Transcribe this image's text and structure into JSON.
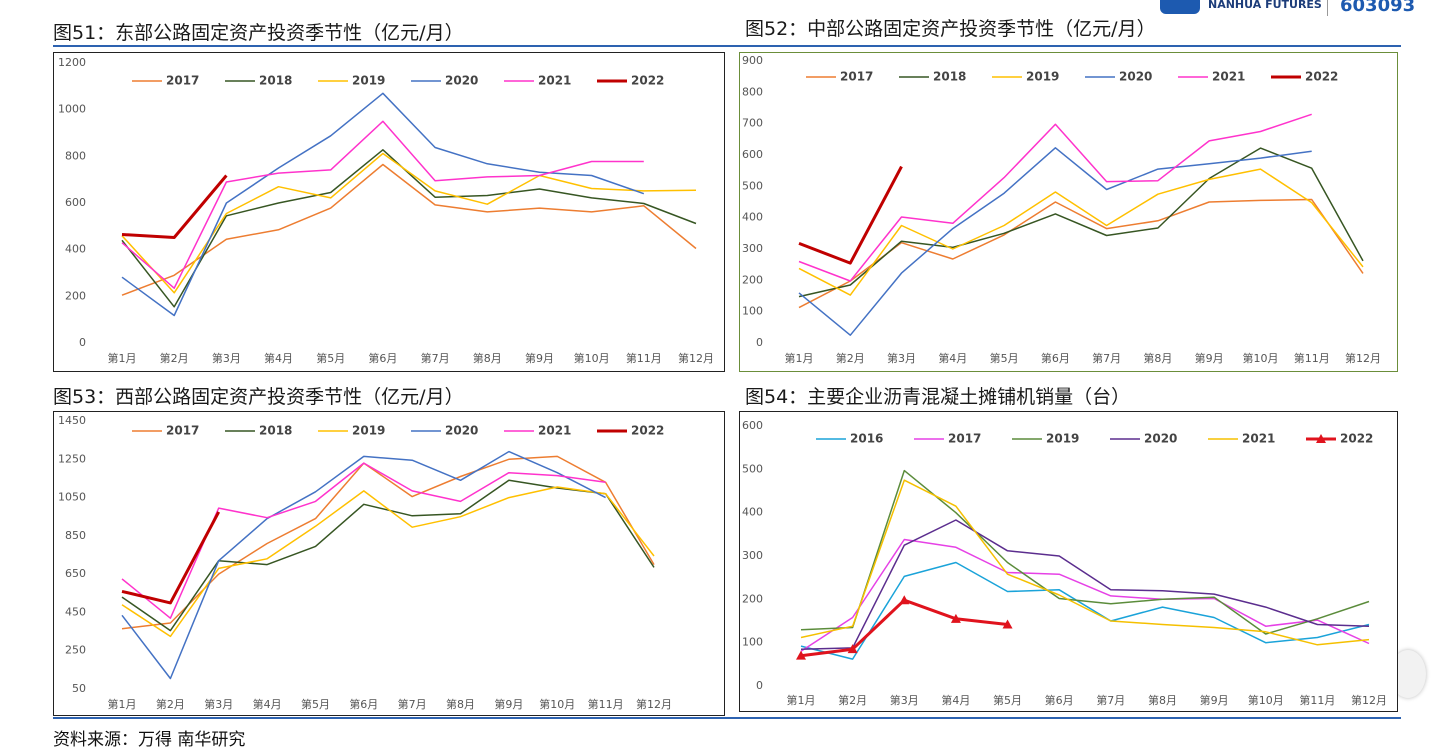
{
  "page": {
    "logo_text": "NANHUA FUTURES",
    "code": "603093",
    "source": "资料来源：万得 南华研究"
  },
  "chart_data": [
    {
      "type": "line",
      "title": "图51：东部公路固定资产投资季节性（亿元/月）",
      "categories": [
        "第1月",
        "第2月",
        "第3月",
        "第4月",
        "第5月",
        "第6月",
        "第7月",
        "第8月",
        "第9月",
        "第10月",
        "第11月",
        "第12月"
      ],
      "ylim": [
        0,
        1200
      ],
      "yticks": [
        0,
        200,
        400,
        600,
        800,
        1000,
        1200
      ],
      "grid": false,
      "legend": "top",
      "series": [
        {
          "name": "2017",
          "color": "#ed7d31",
          "linewidth": 1.5,
          "values": [
            205,
            290,
            445,
            485,
            578,
            765,
            592,
            562,
            578,
            562,
            588,
            405
          ]
        },
        {
          "name": "2018",
          "color": "#375623",
          "linewidth": 1.5,
          "values": [
            440,
            155,
            545,
            600,
            645,
            828,
            625,
            632,
            660,
            622,
            598,
            512
          ]
        },
        {
          "name": "2019",
          "color": "#ffc000",
          "linewidth": 1.5,
          "values": [
            460,
            215,
            555,
            670,
            622,
            812,
            652,
            595,
            718,
            662,
            652,
            655
          ]
        },
        {
          "name": "2020",
          "color": "#4472c4",
          "linewidth": 1.5,
          "values": [
            282,
            118,
            600,
            750,
            888,
            1070,
            838,
            768,
            732,
            718,
            640,
            null
          ]
        },
        {
          "name": "2021",
          "color": "#ff33cc",
          "linewidth": 1.5,
          "values": [
            430,
            235,
            690,
            728,
            742,
            950,
            695,
            712,
            718,
            778,
            778,
            null
          ]
        },
        {
          "name": "2022",
          "color": "#c00000",
          "linewidth": 3,
          "values": [
            465,
            452,
            718,
            null,
            null,
            null,
            null,
            null,
            null,
            null,
            null,
            null
          ]
        }
      ]
    },
    {
      "type": "line",
      "title": "图52：中部公路固定资产投资季节性（亿元/月）",
      "categories": [
        "第1月",
        "第2月",
        "第3月",
        "第4月",
        "第5月",
        "第6月",
        "第7月",
        "第8月",
        "第9月",
        "第10月",
        "第11月",
        "第12月"
      ],
      "ylim": [
        0,
        900
      ],
      "yticks": [
        0,
        100,
        200,
        300,
        400,
        500,
        600,
        700,
        800,
        900
      ],
      "grid": false,
      "legend": "top",
      "series": [
        {
          "name": "2017",
          "color": "#ed7d31",
          "linewidth": 1.5,
          "values": [
            113,
            198,
            320,
            268,
            345,
            450,
            365,
            390,
            450,
            455,
            458,
            222
          ]
        },
        {
          "name": "2018",
          "color": "#375623",
          "linewidth": 1.5,
          "values": [
            148,
            185,
            325,
            305,
            350,
            412,
            343,
            367,
            525,
            622,
            558,
            262
          ]
        },
        {
          "name": "2019",
          "color": "#ffc000",
          "linewidth": 1.5,
          "values": [
            238,
            153,
            375,
            300,
            375,
            482,
            375,
            475,
            522,
            555,
            448,
            243
          ]
        },
        {
          "name": "2020",
          "color": "#4472c4",
          "linewidth": 1.5,
          "values": [
            160,
            25,
            223,
            365,
            478,
            623,
            490,
            555,
            572,
            590,
            612,
            null
          ]
        },
        {
          "name": "2021",
          "color": "#ff33cc",
          "linewidth": 1.5,
          "values": [
            260,
            198,
            402,
            382,
            528,
            698,
            515,
            518,
            645,
            675,
            730,
            null
          ]
        },
        {
          "name": "2022",
          "color": "#c00000",
          "linewidth": 3,
          "values": [
            318,
            255,
            563,
            null,
            null,
            null,
            null,
            null,
            null,
            null,
            null,
            null
          ]
        }
      ]
    },
    {
      "type": "line",
      "title": "图53：西部公路固定资产投资季节性（亿元/月）",
      "categories": [
        "第1月",
        "第2月",
        "第3月",
        "第4月",
        "第5月",
        "第6月",
        "第7月",
        "第8月",
        "第9月",
        "第10月",
        "第11月",
        "第12月"
      ],
      "ylim": [
        50,
        1450
      ],
      "yticks": [
        50,
        250,
        450,
        650,
        850,
        1050,
        1250,
        1450
      ],
      "grid": false,
      "legend": "top",
      "series": [
        {
          "name": "2017",
          "color": "#ed7d31",
          "linewidth": 1.5,
          "values": [
            365,
            395,
            650,
            810,
            940,
            1230,
            1055,
            1160,
            1250,
            1265,
            1130,
            700
          ]
        },
        {
          "name": "2018",
          "color": "#375623",
          "linewidth": 1.5,
          "values": [
            530,
            355,
            720,
            700,
            795,
            1015,
            955,
            965,
            1140,
            1100,
            1070,
            685
          ]
        },
        {
          "name": "2019",
          "color": "#ffc000",
          "linewidth": 1.5,
          "values": [
            490,
            325,
            680,
            730,
            900,
            1085,
            895,
            950,
            1050,
            1105,
            1070,
            745
          ]
        },
        {
          "name": "2020",
          "color": "#4472c4",
          "linewidth": 1.5,
          "values": [
            435,
            105,
            720,
            940,
            1080,
            1265,
            1245,
            1140,
            1290,
            1180,
            1050,
            null
          ]
        },
        {
          "name": "2021",
          "color": "#ff33cc",
          "linewidth": 1.5,
          "values": [
            625,
            420,
            995,
            945,
            1030,
            1230,
            1085,
            1030,
            1180,
            1165,
            1130,
            null
          ]
        },
        {
          "name": "2022",
          "color": "#c00000",
          "linewidth": 3,
          "values": [
            560,
            500,
            975,
            null,
            null,
            null,
            null,
            null,
            null,
            null,
            null,
            null
          ]
        }
      ]
    },
    {
      "type": "line",
      "title": "图54：主要企业沥青混凝土摊铺机销量（台）",
      "categories": [
        "第1月",
        "第2月",
        "第3月",
        "第4月",
        "第5月",
        "第6月",
        "第7月",
        "第8月",
        "第9月",
        "第10月",
        "第11月",
        "第12月"
      ],
      "ylim": [
        0,
        600
      ],
      "yticks": [
        0,
        100,
        200,
        300,
        400,
        500,
        600
      ],
      "grid": false,
      "legend": "top",
      "series": [
        {
          "name": "2016",
          "color": "#1aa3d9",
          "linewidth": 1.5,
          "values": [
            92,
            62,
            253,
            285,
            218,
            222,
            150,
            182,
            158,
            100,
            112,
            142
          ]
        },
        {
          "name": "2017",
          "color": "#e641e6",
          "linewidth": 1.5,
          "values": [
            80,
            158,
            338,
            320,
            262,
            258,
            208,
            200,
            202,
            138,
            152,
            98
          ]
        },
        {
          "name": "2019",
          "color": "#5b8c3b",
          "linewidth": 1.5,
          "values": [
            130,
            135,
            497,
            400,
            285,
            202,
            190,
            200,
            205,
            120,
            155,
            195
          ]
        },
        {
          "name": "2020",
          "color": "#5b2d8e",
          "linewidth": 1.5,
          "values": [
            85,
            88,
            325,
            383,
            312,
            300,
            222,
            220,
            212,
            182,
            142,
            138
          ]
        },
        {
          "name": "2021",
          "color": "#f5c000",
          "linewidth": 1.5,
          "values": [
            112,
            138,
            475,
            415,
            258,
            210,
            150,
            142,
            135,
            125,
            95,
            107
          ]
        },
        {
          "name": "2022",
          "color": "#e0131d",
          "linewidth": 3,
          "marker": "triangle",
          "values": [
            70,
            85,
            198,
            155,
            142,
            null,
            null,
            null,
            null,
            null,
            null,
            null
          ]
        }
      ]
    }
  ]
}
